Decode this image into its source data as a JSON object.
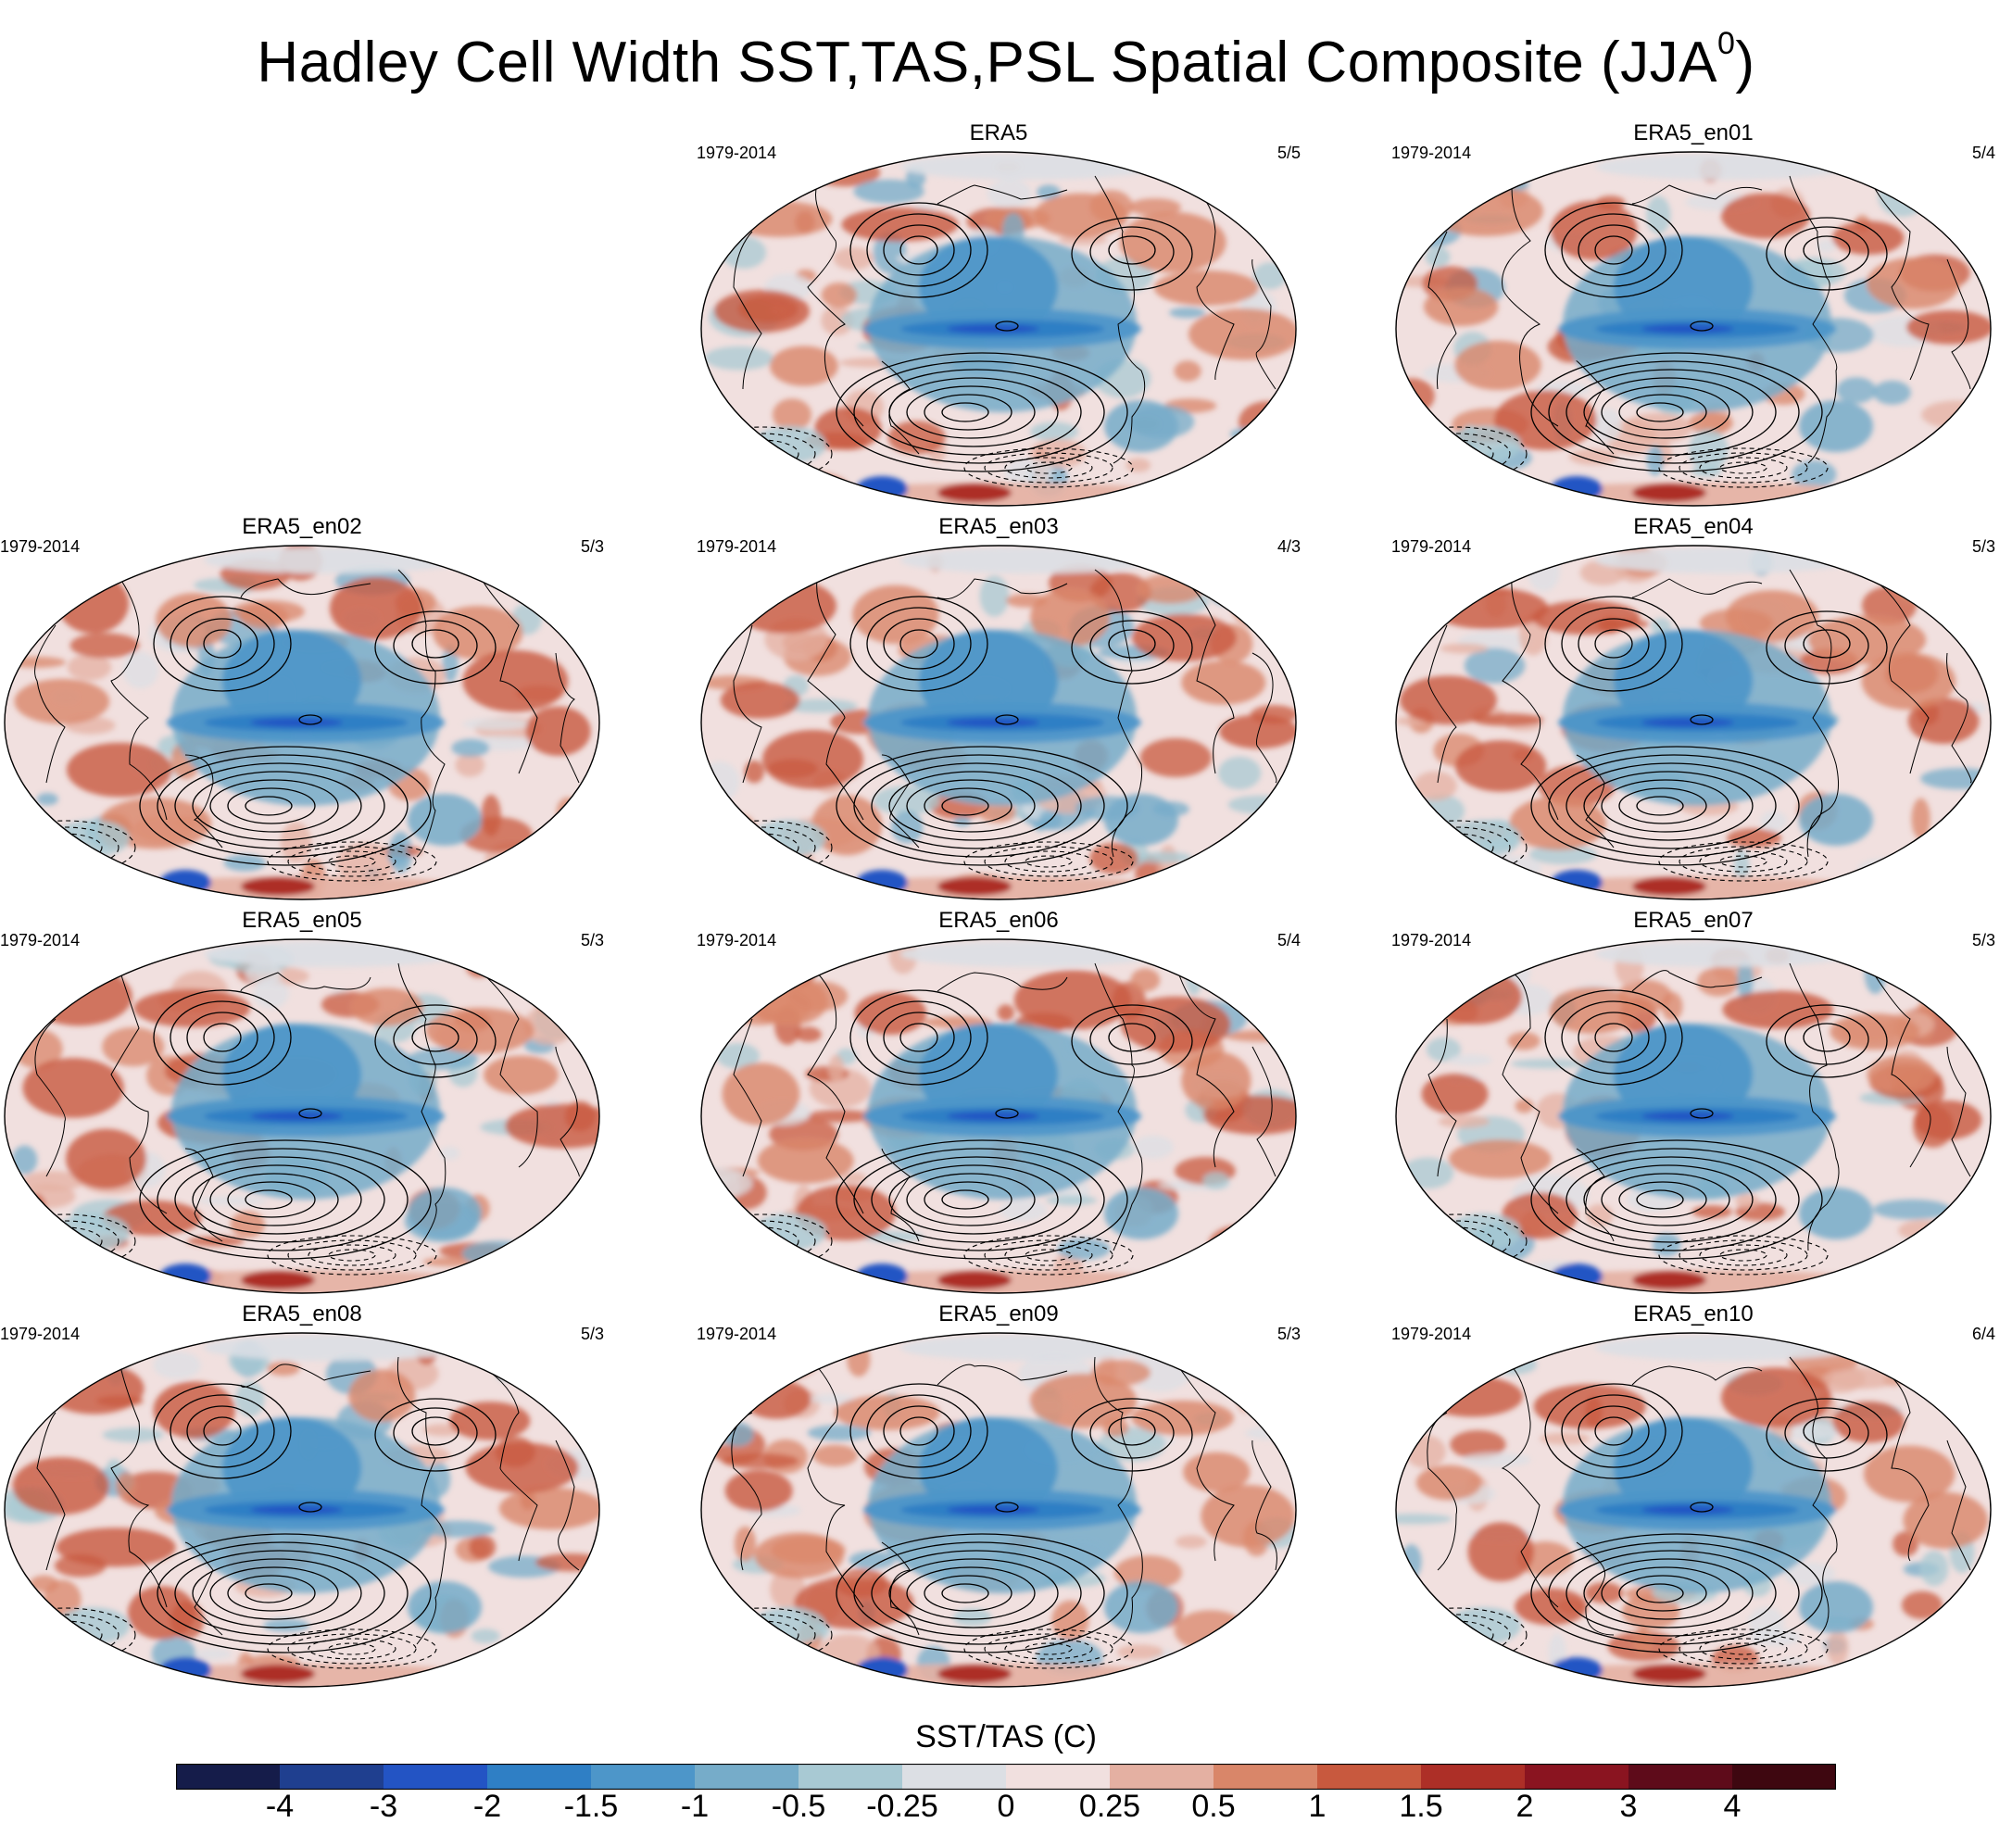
{
  "title": "Hadley Cell Width SST,TAS,PSL Spatial Composite (JJA",
  "title_sup": "0",
  "title_close": ")",
  "chart_data": {
    "type": "heatmap",
    "description_kind": "multi-panel global map composite",
    "season": "JJA",
    "colorbar": {
      "title": "SST/TAS (C)",
      "levels": [
        "-4",
        "-3",
        "-2",
        "-1.5",
        "-1",
        "-0.5",
        "-0.25",
        "0",
        "0.25",
        "0.5",
        "1",
        "1.5",
        "2",
        "3",
        "4"
      ],
      "colors": [
        "#151c4a",
        "#1f3f8f",
        "#2354c4",
        "#2f7fc5",
        "#4d96c9",
        "#76acc9",
        "#a8c9d3",
        "#dcdfe4",
        "#f1e0df",
        "#e4b0a2",
        "#d98669",
        "#c8593e",
        "#ad2f27",
        "#8a1420",
        "#5e0b1a",
        "#3e0710"
      ]
    },
    "panels": [
      {
        "name": "ERA5",
        "years": "1979-2014",
        "ratio": "5/5"
      },
      {
        "name": "ERA5_en01",
        "years": "1979-2014",
        "ratio": "5/4"
      },
      {
        "name": "ERA5_en02",
        "years": "1979-2014",
        "ratio": "5/3"
      },
      {
        "name": "ERA5_en03",
        "years": "1979-2014",
        "ratio": "4/3"
      },
      {
        "name": "ERA5_en04",
        "years": "1979-2014",
        "ratio": "5/3"
      },
      {
        "name": "ERA5_en05",
        "years": "1979-2014",
        "ratio": "5/3"
      },
      {
        "name": "ERA5_en06",
        "years": "1979-2014",
        "ratio": "5/4"
      },
      {
        "name": "ERA5_en07",
        "years": "1979-2014",
        "ratio": "5/3"
      },
      {
        "name": "ERA5_en08",
        "years": "1979-2014",
        "ratio": "5/3"
      },
      {
        "name": "ERA5_en09",
        "years": "1979-2014",
        "ratio": "5/3"
      },
      {
        "name": "ERA5_en10",
        "years": "1979-2014",
        "ratio": "6/4"
      }
    ]
  }
}
